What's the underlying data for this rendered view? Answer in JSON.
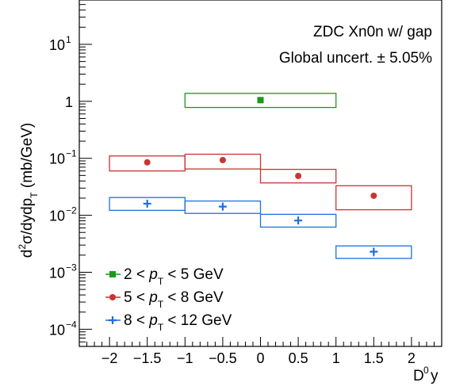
{
  "chart_data": {
    "type": "scatter",
    "title": "",
    "annotations": [
      "ZDC Xn0n w/ gap",
      "Global uncert. ± 5.05%"
    ],
    "xlabel": "D⁰ y",
    "ylabel": "d²σ/dydp_T (mb/GeV)",
    "xlim": [
      -2.4,
      2.4
    ],
    "ylim": [
      5e-05,
      60
    ],
    "y_scale": "log",
    "grid": false,
    "legend_position": "bottom-left",
    "x_ticks": [
      "−2",
      "−1.5",
      "−1",
      "−0.5",
      "0",
      "0.5",
      "1",
      "1.5",
      "2"
    ],
    "x_tick_values": [
      -2,
      -1.5,
      -1,
      -0.5,
      0,
      0.5,
      1,
      1.5,
      2
    ],
    "y_ticks": [
      {
        "base": "10",
        "exp": "1",
        "value": 10
      },
      {
        "base": "1",
        "exp": "",
        "value": 1
      },
      {
        "base": "10",
        "exp": "−1",
        "value": 0.1
      },
      {
        "base": "10",
        "exp": "−2",
        "value": 0.01
      },
      {
        "base": "10",
        "exp": "−3",
        "value": 0.001
      },
      {
        "base": "10",
        "exp": "−4",
        "value": 0.0001
      }
    ],
    "series": [
      {
        "legend_parts": [
          "2 < ",
          "p",
          "T",
          " < 5 GeV"
        ],
        "color": "#1a9a1a",
        "marker": "square",
        "points": [
          {
            "x": 0,
            "y": 1.05,
            "sys_x": [
              -1,
              1
            ],
            "sys_y": [
              0.78,
              1.38
            ]
          }
        ]
      },
      {
        "legend_parts": [
          "5 < ",
          "p",
          "T",
          " < 8 GeV"
        ],
        "color": "#cc3333",
        "marker": "circle",
        "points": [
          {
            "x": -1.5,
            "y": 0.085,
            "sys_x": [
              -2,
              -1
            ],
            "sys_y": [
              0.06,
              0.11
            ]
          },
          {
            "x": -0.5,
            "y": 0.093,
            "sys_x": [
              -1,
              0
            ],
            "sys_y": [
              0.065,
              0.118
            ]
          },
          {
            "x": 0.5,
            "y": 0.049,
            "sys_x": [
              0,
              1
            ],
            "sys_y": [
              0.037,
              0.064
            ]
          },
          {
            "x": 1.5,
            "y": 0.022,
            "sys_x": [
              1,
              2
            ],
            "sys_y": [
              0.0125,
              0.033
            ]
          }
        ]
      },
      {
        "legend_parts": [
          "8 < ",
          "p",
          "T",
          " < 12 GeV"
        ],
        "color": "#1e6fe0",
        "marker": "cross",
        "points": [
          {
            "x": -1.5,
            "y": 0.016,
            "sys_x": [
              -2,
              -1
            ],
            "sys_y": [
              0.0122,
              0.0205
            ]
          },
          {
            "x": -0.5,
            "y": 0.0142,
            "sys_x": [
              -1,
              0
            ],
            "sys_y": [
              0.0108,
              0.0178
            ]
          },
          {
            "x": 0.5,
            "y": 0.0081,
            "sys_x": [
              0,
              1
            ],
            "sys_y": [
              0.0062,
              0.0104
            ]
          },
          {
            "x": 1.5,
            "y": 0.0023,
            "sys_x": [
              1,
              2
            ],
            "sys_y": [
              0.00175,
              0.0029
            ],
            "stat_err": [
              0.0019,
              0.0027
            ]
          }
        ]
      }
    ]
  }
}
